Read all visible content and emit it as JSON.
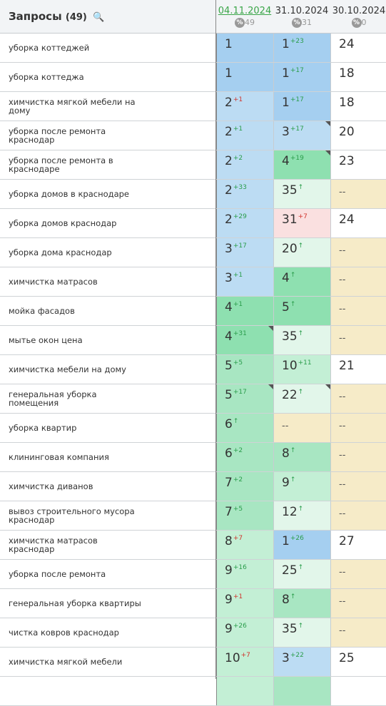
{
  "header": {
    "title": "Запросы",
    "count": "(49)",
    "search_icon": "🔍",
    "dates": [
      {
        "label": "04.11.2024",
        "pct": "49",
        "active": true
      },
      {
        "label": "31.10.2024",
        "pct": "31",
        "active": false
      },
      {
        "label": "30.10.2024",
        "pct": "0",
        "active": false
      }
    ],
    "pct_icon": "%"
  },
  "colors": {
    "blue": "#a5cff0",
    "blue_light": "#bcdcf3",
    "green": "#8ee0b0",
    "green_mid": "#a8e6c2",
    "green_light": "#c3efd5",
    "green_pale": "#e2f6ea",
    "pink": "#fae0e0",
    "beige": "#f6ebc8",
    "white": "#ffffff",
    "up": "#2a9d4b",
    "down": "#d0342c"
  },
  "rows": [
    {
      "query": "уборка коттеджей",
      "c": [
        {
          "v": "1",
          "bg": "blue"
        },
        {
          "v": "1",
          "d": "+23",
          "dir": "up",
          "bg": "blue"
        },
        {
          "v": "24",
          "bg": "white"
        }
      ]
    },
    {
      "query": "уборка коттеджа",
      "c": [
        {
          "v": "1",
          "bg": "blue"
        },
        {
          "v": "1",
          "d": "+17",
          "dir": "up",
          "bg": "blue"
        },
        {
          "v": "18",
          "bg": "white"
        }
      ]
    },
    {
      "query": "химчистка мягкой мебели на дому",
      "c": [
        {
          "v": "2",
          "d": "+1",
          "dir": "down",
          "bg": "blue_light"
        },
        {
          "v": "1",
          "d": "+17",
          "dir": "up",
          "bg": "blue"
        },
        {
          "v": "18",
          "bg": "white"
        }
      ]
    },
    {
      "query": "уборка после ремонта краснодар",
      "c": [
        {
          "v": "2",
          "d": "+1",
          "dir": "up",
          "bg": "blue_light"
        },
        {
          "v": "3",
          "d": "+17",
          "dir": "up",
          "bg": "blue_light",
          "tri": true
        },
        {
          "v": "20",
          "bg": "white"
        }
      ]
    },
    {
      "query": "уборка после ремонта в краснодаре",
      "c": [
        {
          "v": "2",
          "d": "+2",
          "dir": "up",
          "bg": "blue_light"
        },
        {
          "v": "4",
          "d": "+19",
          "dir": "up",
          "bg": "green",
          "tri": true
        },
        {
          "v": "23",
          "bg": "white"
        }
      ]
    },
    {
      "query": "уборка домов в краснодаре",
      "c": [
        {
          "v": "2",
          "d": "+33",
          "dir": "up",
          "bg": "blue_light"
        },
        {
          "v": "35",
          "d": "↑",
          "dir": "up",
          "bg": "green_pale"
        },
        {
          "v": "--",
          "bg": "beige",
          "dash": true
        }
      ]
    },
    {
      "query": "уборка домов краснодар",
      "c": [
        {
          "v": "2",
          "d": "+29",
          "dir": "up",
          "bg": "blue_light"
        },
        {
          "v": "31",
          "d": "+7",
          "dir": "down",
          "bg": "pink"
        },
        {
          "v": "24",
          "bg": "white"
        }
      ]
    },
    {
      "query": "уборка дома краснодар",
      "c": [
        {
          "v": "3",
          "d": "+17",
          "dir": "up",
          "bg": "blue_light"
        },
        {
          "v": "20",
          "d": "↑",
          "dir": "up",
          "bg": "green_pale"
        },
        {
          "v": "--",
          "bg": "beige",
          "dash": true
        }
      ]
    },
    {
      "query": "химчистка матрасов",
      "c": [
        {
          "v": "3",
          "d": "+1",
          "dir": "up",
          "bg": "blue_light"
        },
        {
          "v": "4",
          "d": "↑",
          "dir": "up",
          "bg": "green"
        },
        {
          "v": "--",
          "bg": "beige",
          "dash": true
        }
      ]
    },
    {
      "query": "мойка фасадов",
      "c": [
        {
          "v": "4",
          "d": "+1",
          "dir": "up",
          "bg": "green"
        },
        {
          "v": "5",
          "d": "↑",
          "dir": "up",
          "bg": "green"
        },
        {
          "v": "--",
          "bg": "beige",
          "dash": true
        }
      ]
    },
    {
      "query": "мытье окон цена",
      "c": [
        {
          "v": "4",
          "d": "+31",
          "dir": "up",
          "bg": "green",
          "tri": true
        },
        {
          "v": "35",
          "d": "↑",
          "dir": "up",
          "bg": "green_pale"
        },
        {
          "v": "--",
          "bg": "beige",
          "dash": true
        }
      ]
    },
    {
      "query": "химчистка мебели на дому",
      "c": [
        {
          "v": "5",
          "d": "+5",
          "dir": "up",
          "bg": "green_mid"
        },
        {
          "v": "10",
          "d": "+11",
          "dir": "up",
          "bg": "green_light"
        },
        {
          "v": "21",
          "bg": "white"
        }
      ]
    },
    {
      "query": "генеральная уборка помещения",
      "c": [
        {
          "v": "5",
          "d": "+17",
          "dir": "up",
          "bg": "green_mid",
          "tri": true
        },
        {
          "v": "22",
          "d": "↑",
          "dir": "up",
          "bg": "green_pale",
          "tri": true
        },
        {
          "v": "--",
          "bg": "beige",
          "dash": true
        }
      ]
    },
    {
      "query": "уборка квартир",
      "c": [
        {
          "v": "6",
          "d": "↑",
          "dir": "up",
          "bg": "green_mid"
        },
        {
          "v": "--",
          "bg": "beige",
          "dash": true
        },
        {
          "v": "--",
          "bg": "beige",
          "dash": true
        }
      ]
    },
    {
      "query": "клининговая компания",
      "c": [
        {
          "v": "6",
          "d": "+2",
          "dir": "up",
          "bg": "green_mid"
        },
        {
          "v": "8",
          "d": "↑",
          "dir": "up",
          "bg": "green_mid"
        },
        {
          "v": "--",
          "bg": "beige",
          "dash": true
        }
      ]
    },
    {
      "query": "химчистка диванов",
      "c": [
        {
          "v": "7",
          "d": "+2",
          "dir": "up",
          "bg": "green_mid"
        },
        {
          "v": "9",
          "d": "↑",
          "dir": "up",
          "bg": "green_light"
        },
        {
          "v": "--",
          "bg": "beige",
          "dash": true
        }
      ]
    },
    {
      "query": "вывоз строительного мусора краснодар",
      "c": [
        {
          "v": "7",
          "d": "+5",
          "dir": "up",
          "bg": "green_mid"
        },
        {
          "v": "12",
          "d": "↑",
          "dir": "up",
          "bg": "green_pale"
        },
        {
          "v": "--",
          "bg": "beige",
          "dash": true
        }
      ]
    },
    {
      "query": "химчистка матрасов краснодар",
      "c": [
        {
          "v": "8",
          "d": "+7",
          "dir": "down",
          "bg": "green_light"
        },
        {
          "v": "1",
          "d": "+26",
          "dir": "up",
          "bg": "blue"
        },
        {
          "v": "27",
          "bg": "white"
        }
      ]
    },
    {
      "query": "уборка после ремонта",
      "c": [
        {
          "v": "9",
          "d": "+16",
          "dir": "up",
          "bg": "green_light"
        },
        {
          "v": "25",
          "d": "↑",
          "dir": "up",
          "bg": "green_pale"
        },
        {
          "v": "--",
          "bg": "beige",
          "dash": true
        }
      ]
    },
    {
      "query": "генеральная уборка квартиры",
      "c": [
        {
          "v": "9",
          "d": "+1",
          "dir": "down",
          "bg": "green_light"
        },
        {
          "v": "8",
          "d": "↑",
          "dir": "up",
          "bg": "green_mid"
        },
        {
          "v": "--",
          "bg": "beige",
          "dash": true
        }
      ]
    },
    {
      "query": "чистка ковров краснодар",
      "c": [
        {
          "v": "9",
          "d": "+26",
          "dir": "up",
          "bg": "green_light"
        },
        {
          "v": "35",
          "d": "↑",
          "dir": "up",
          "bg": "green_pale"
        },
        {
          "v": "--",
          "bg": "beige",
          "dash": true
        }
      ]
    },
    {
      "query": "химчистка мягкой мебели",
      "c": [
        {
          "v": "10",
          "d": "+7",
          "dir": "down",
          "bg": "green_light"
        },
        {
          "v": "3",
          "d": "+22",
          "dir": "up",
          "bg": "blue_light"
        },
        {
          "v": "25",
          "bg": "white"
        }
      ]
    },
    {
      "query": "",
      "c": [
        {
          "v": "",
          "bg": "green_light"
        },
        {
          "v": "",
          "bg": "green_mid"
        },
        {
          "v": "",
          "bg": "white"
        }
      ]
    }
  ]
}
